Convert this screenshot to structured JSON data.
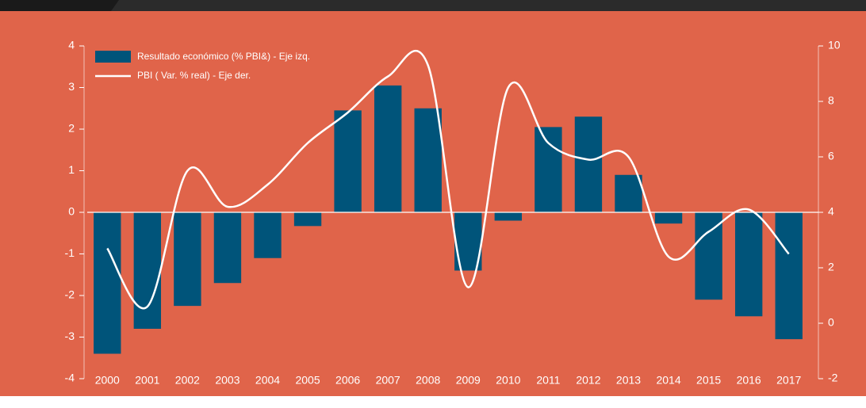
{
  "chart_data": {
    "type": "bar",
    "categories": [
      "2000",
      "2001",
      "2002",
      "2003",
      "2004",
      "2005",
      "2006",
      "2007",
      "2008",
      "2009",
      "2010",
      "2011",
      "2012",
      "2013",
      "2014",
      "2015",
      "2016",
      "2017"
    ],
    "series": [
      {
        "name": "Resultado económico (% PBI&) - Eje izq.",
        "type": "bar",
        "color": "#00547a",
        "values": [
          -3.4,
          -2.8,
          -2.25,
          -1.7,
          -1.1,
          -0.33,
          2.45,
          3.05,
          2.5,
          -1.4,
          -0.2,
          2.05,
          2.3,
          0.9,
          -0.27,
          -2.1,
          -2.5,
          -3.05
        ]
      },
      {
        "name": "PBI ( Var. % real) - Eje der.",
        "type": "line",
        "color": "#ffffff",
        "axis": "y2",
        "values": [
          2.7,
          0.6,
          5.5,
          4.2,
          5.0,
          6.5,
          7.6,
          8.9,
          9.3,
          1.3,
          8.5,
          6.5,
          5.9,
          6.0,
          2.4,
          3.3,
          4.1,
          2.5
        ]
      }
    ],
    "ylim": [
      -4,
      4
    ],
    "yticks": [
      -4,
      -3,
      -2,
      -1,
      0,
      1,
      2,
      3,
      4
    ],
    "y2lim": [
      -2,
      10
    ],
    "y2ticks": [
      -2,
      0,
      2,
      4,
      6,
      8,
      10
    ],
    "legend": "top-left"
  }
}
